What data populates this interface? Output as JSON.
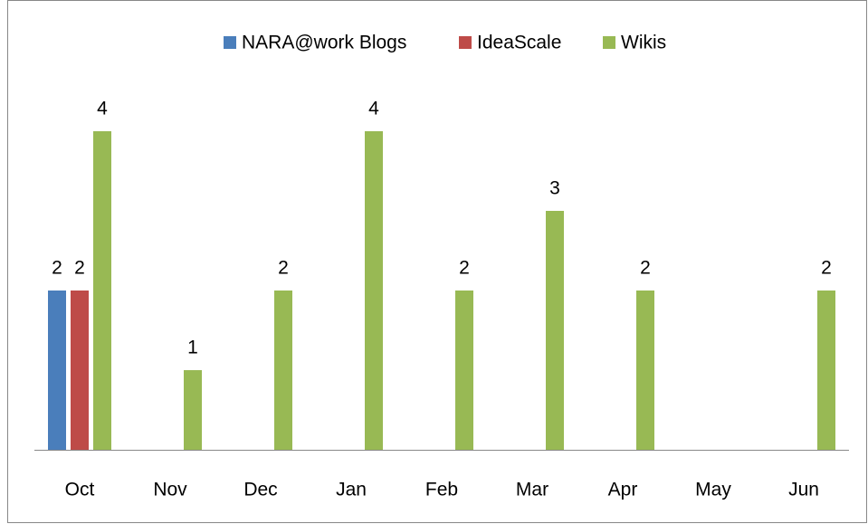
{
  "chart_data": {
    "type": "bar",
    "categories": [
      "Oct",
      "Nov",
      "Dec",
      "Jan",
      "Feb",
      "Mar",
      "Apr",
      "May",
      "Jun"
    ],
    "series": [
      {
        "name": "NARA@work Blogs",
        "color": "#4a7ebb",
        "values": [
          2,
          null,
          null,
          null,
          null,
          null,
          null,
          null,
          null
        ]
      },
      {
        "name": "IdeaScale",
        "color": "#be4b48",
        "values": [
          2,
          null,
          null,
          null,
          null,
          null,
          null,
          null,
          null
        ]
      },
      {
        "name": "Wikis",
        "color": "#98b954",
        "values": [
          4,
          1,
          2,
          4,
          2,
          3,
          2,
          null,
          2
        ]
      }
    ],
    "legend": "top"
  }
}
